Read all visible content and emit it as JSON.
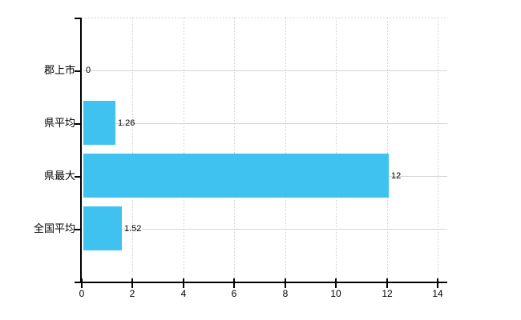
{
  "chart_data": {
    "type": "bar",
    "orientation": "horizontal",
    "title": "",
    "xlabel": "",
    "ylabel": "",
    "categories": [
      "郡上市",
      "県平均",
      "県最大",
      "全国平均"
    ],
    "values": [
      0,
      1.26,
      12,
      1.52
    ],
    "value_labels": [
      "0",
      "1.26",
      "12",
      "1.52"
    ],
    "x_ticks": [
      0,
      2,
      4,
      6,
      8,
      10,
      12,
      14
    ],
    "x_tick_labels": [
      "0",
      "2",
      "4",
      "6",
      "8",
      "10",
      "12",
      "14"
    ],
    "xlim": [
      0,
      14.4
    ],
    "legend": "none",
    "grid": "vertical-dashed, horizontal-solid, top-border-dashed",
    "colors": {
      "bar": "#40c2f1",
      "grid": "#d5d5d5",
      "axis": "#000000",
      "text": "#000000",
      "background": "#ffffff"
    }
  }
}
